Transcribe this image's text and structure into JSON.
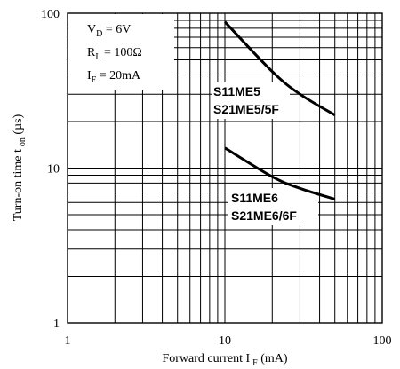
{
  "chart_data": {
    "type": "line",
    "x_scale": "log",
    "y_scale": "log",
    "xlim": [
      1,
      100
    ],
    "ylim": [
      1,
      100
    ],
    "grid": true,
    "x_ticks": [
      "1",
      "10",
      "100"
    ],
    "y_ticks": [
      "1",
      "10",
      "100"
    ],
    "xlabel": {
      "main": "Forward current I",
      "sub": "F",
      "unit": " (mA)"
    },
    "ylabel": {
      "main": "Turn-on time t",
      "sub": "on",
      "unit": " (µs)"
    },
    "conditions": [
      {
        "main": "V",
        "sub": "D",
        "rest": " = 6V"
      },
      {
        "main": "R",
        "sub": "L",
        "rest": " = 100Ω"
      },
      {
        "main": "I",
        "sub": "F",
        "rest": " = 20mA"
      }
    ],
    "series": [
      {
        "name_lines": [
          "S11ME5",
          "S21ME5/5F"
        ],
        "x": [
          10,
          20,
          30,
          50
        ],
        "y": [
          88,
          42,
          30,
          22
        ]
      },
      {
        "name_lines": [
          "S11ME6",
          "S21ME6/6F"
        ],
        "x": [
          10,
          20,
          30,
          50
        ],
        "y": [
          13.5,
          8.8,
          7.4,
          6.3
        ]
      }
    ]
  }
}
